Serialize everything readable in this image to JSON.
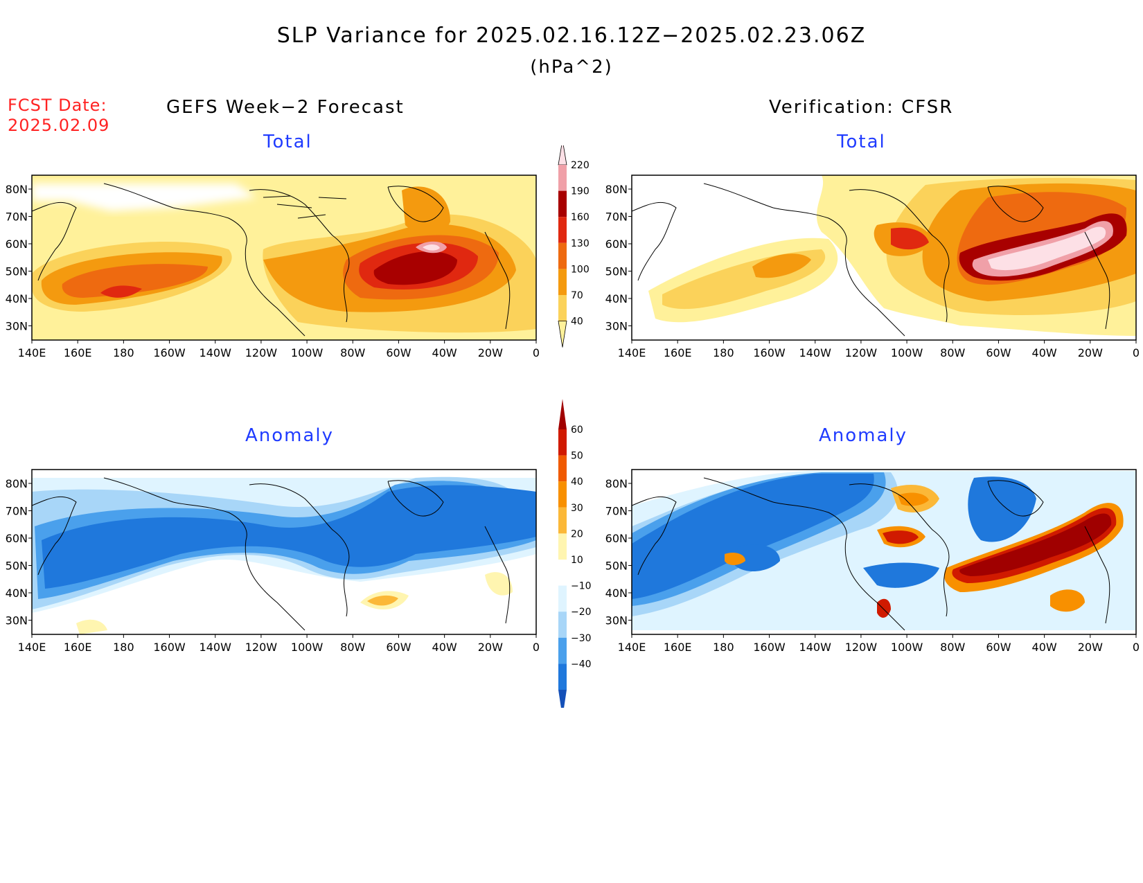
{
  "title": "SLP Variance for 2025.02.16.12Z−2025.02.23.06Z",
  "units": "(hPa^2)",
  "fcst_date_label": "FCST Date:",
  "fcst_date_value": "2025.02.09",
  "left_column_title": "GEFS Week−2 Forecast",
  "right_column_title": "Verification: CFSR",
  "panels": {
    "total_left": "Total",
    "total_right": "Total",
    "anomaly_left": "Anomaly",
    "anomaly_right": "Anomaly"
  },
  "axes": {
    "lon_labels": [
      "140E",
      "160E",
      "180",
      "160W",
      "140W",
      "120W",
      "100W",
      "80W",
      "60W",
      "40W",
      "20W",
      "0"
    ],
    "lat_labels": [
      "80N",
      "70N",
      "60N",
      "50N",
      "40N",
      "30N"
    ]
  },
  "total_colorbar": {
    "levels": [
      "40",
      "70",
      "100",
      "130",
      "160",
      "190",
      "220"
    ],
    "colors": [
      "#fff19a",
      "#fbd25a",
      "#f49a0f",
      "#ee6a10",
      "#e02810",
      "#a80000",
      "#f0a0a8",
      "#fde0e6"
    ]
  },
  "anomaly_colorbar": {
    "levels": [
      "60",
      "50",
      "40",
      "30",
      "20",
      "10",
      "−10",
      "−20",
      "−30",
      "−40"
    ],
    "colors": [
      "#a00000",
      "#d01a00",
      "#f05a00",
      "#f89000",
      "#fbb838",
      "#fff5b0",
      "#ffffff",
      "#dff4ff",
      "#a8d6f8",
      "#4aa0ec",
      "#1f78dc",
      "#1450b8"
    ]
  },
  "chart_data": {
    "type": "heatmap",
    "variable": "SLP Variance",
    "units": "(hPa^2)",
    "x_range": [
      "140E",
      "0"
    ],
    "y_range": [
      "25N",
      "85N"
    ],
    "panels": [
      {
        "panel": "GEFS Week-2 Forecast – Total",
        "max_near": "55N 45W",
        "peak_class": "190–220"
      },
      {
        "panel": "Verification: CFSR – Total",
        "max_near": "50N 40W",
        "peak_class": ">220"
      },
      {
        "panel": "GEFS Week-2 Forecast – Anomaly",
        "dominant": "negative (−40 to −30) across North Pacific and Canada"
      },
      {
        "panel": "Verification: CFSR – Anomaly",
        "dominant": "positive (>60) over North Atlantic; negative over North Pacific"
      }
    ]
  }
}
